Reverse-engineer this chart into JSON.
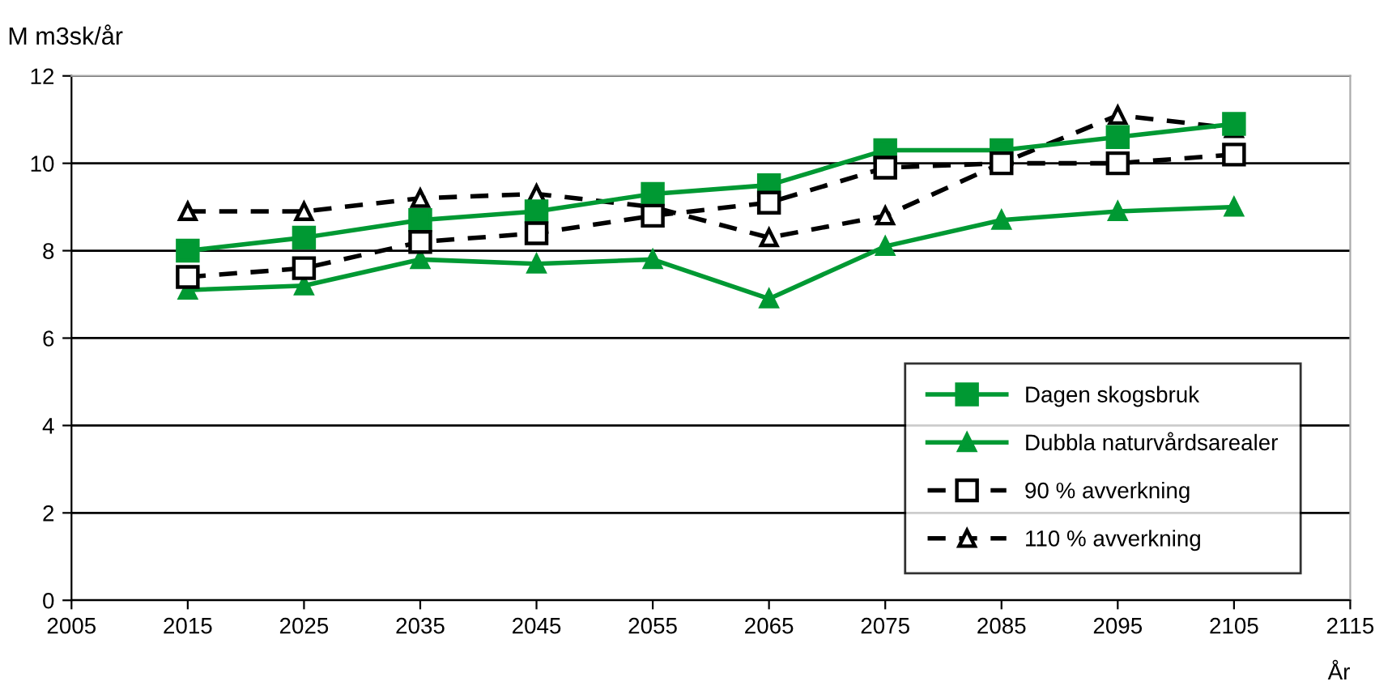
{
  "chart_data": {
    "type": "line",
    "xlabel": "År",
    "ylabel": "M m3sk/år",
    "x": [
      2015,
      2025,
      2035,
      2045,
      2055,
      2065,
      2075,
      2085,
      2095,
      2105
    ],
    "xlim": [
      2005,
      2115
    ],
    "xticks": [
      2005,
      2015,
      2025,
      2035,
      2045,
      2055,
      2065,
      2075,
      2085,
      2095,
      2105,
      2115
    ],
    "ylim": [
      0,
      12
    ],
    "yticks": [
      0,
      2,
      4,
      6,
      8,
      10,
      12
    ],
    "grid": "y",
    "legend": "bottom right",
    "series": [
      {
        "name": "Dagen skogsbruk",
        "color": "#009933",
        "marker": "square",
        "line_style": "solid",
        "values": [
          8.0,
          8.3,
          8.7,
          8.9,
          9.3,
          9.5,
          10.3,
          10.3,
          10.6,
          10.9
        ]
      },
      {
        "name": "Dubbla naturvårdsarealer",
        "color": "#009933",
        "marker": "triangle",
        "line_style": "solid",
        "values": [
          7.1,
          7.2,
          7.8,
          7.7,
          7.8,
          6.9,
          8.1,
          8.7,
          8.9,
          9.0
        ]
      },
      {
        "name": "90 % avverkning",
        "color": "#000000",
        "marker": "square",
        "line_style": "dashed",
        "values": [
          7.4,
          7.6,
          8.2,
          8.4,
          8.8,
          9.1,
          9.9,
          10.0,
          10.0,
          10.2
        ]
      },
      {
        "name": "110 % avverkning",
        "color": "#000000",
        "marker": "triangle",
        "line_style": "dashed",
        "values": [
          8.9,
          8.9,
          9.2,
          9.3,
          9.0,
          8.3,
          8.8,
          10.0,
          11.1,
          10.8
        ]
      }
    ]
  }
}
